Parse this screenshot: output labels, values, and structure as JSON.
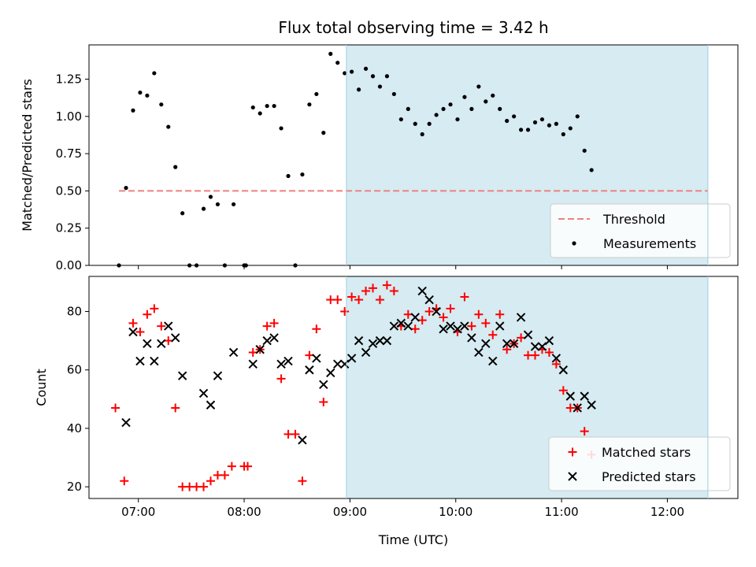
{
  "chart_data": {
    "type": "scatter",
    "title": "Flux total observing time = 3.42 h",
    "xlabel": "Time (UTC)",
    "x_ticks": [
      "07:00",
      "08:00",
      "09:00",
      "10:00",
      "11:00",
      "12:00"
    ],
    "xlim": [
      "06:32",
      "12:40"
    ],
    "shaded_interval": {
      "start": "08:58",
      "end": "12:23",
      "color": "#add8e6"
    },
    "panels": [
      {
        "ylabel": "Matched/Predicted stars",
        "ylim": [
          0,
          1.48
        ],
        "y_ticks": [
          "0.00",
          "0.25",
          "0.50",
          "0.75",
          "1.00",
          "1.25"
        ],
        "threshold": {
          "name": "Threshold",
          "value": 0.5,
          "x_start": "06:49",
          "x_end": "12:23",
          "color": "#f08080"
        },
        "series": [
          {
            "name": "Measurements",
            "marker": "dot",
            "color": "#000000",
            "points": [
              [
                "06:49",
                0.0
              ],
              [
                "06:53",
                0.52
              ],
              [
                "06:57",
                1.04
              ],
              [
                "07:01",
                1.16
              ],
              [
                "07:05",
                1.14
              ],
              [
                "07:09",
                1.29
              ],
              [
                "07:13",
                1.08
              ],
              [
                "07:17",
                0.93
              ],
              [
                "07:21",
                0.66
              ],
              [
                "07:25",
                0.35
              ],
              [
                "07:29",
                0.0
              ],
              [
                "07:33",
                0.0
              ],
              [
                "07:37",
                0.38
              ],
              [
                "07:41",
                0.46
              ],
              [
                "07:45",
                0.41
              ],
              [
                "07:49",
                0.0
              ],
              [
                "07:54",
                0.41
              ],
              [
                "08:00",
                0.0
              ],
              [
                "08:01",
                0.0
              ],
              [
                "08:05",
                1.06
              ],
              [
                "08:09",
                1.02
              ],
              [
                "08:13",
                1.07
              ],
              [
                "08:17",
                1.07
              ],
              [
                "08:21",
                0.92
              ],
              [
                "08:25",
                0.6
              ],
              [
                "08:29",
                0.0
              ],
              [
                "08:33",
                0.61
              ],
              [
                "08:37",
                1.08
              ],
              [
                "08:41",
                1.15
              ],
              [
                "08:45",
                0.89
              ],
              [
                "08:49",
                1.42
              ],
              [
                "08:53",
                1.36
              ],
              [
                "08:57",
                1.29
              ],
              [
                "09:01",
                1.3
              ],
              [
                "09:05",
                1.18
              ],
              [
                "09:09",
                1.32
              ],
              [
                "09:13",
                1.27
              ],
              [
                "09:17",
                1.2
              ],
              [
                "09:21",
                1.27
              ],
              [
                "09:25",
                1.15
              ],
              [
                "09:29",
                0.98
              ],
              [
                "09:33",
                1.05
              ],
              [
                "09:37",
                0.95
              ],
              [
                "09:41",
                0.88
              ],
              [
                "09:45",
                0.95
              ],
              [
                "09:49",
                1.01
              ],
              [
                "09:53",
                1.05
              ],
              [
                "09:57",
                1.08
              ],
              [
                "10:01",
                0.98
              ],
              [
                "10:05",
                1.13
              ],
              [
                "10:09",
                1.05
              ],
              [
                "10:13",
                1.2
              ],
              [
                "10:17",
                1.1
              ],
              [
                "10:21",
                1.14
              ],
              [
                "10:25",
                1.05
              ],
              [
                "10:29",
                0.97
              ],
              [
                "10:33",
                1.0
              ],
              [
                "10:37",
                0.91
              ],
              [
                "10:41",
                0.91
              ],
              [
                "10:45",
                0.96
              ],
              [
                "10:49",
                0.98
              ],
              [
                "10:53",
                0.94
              ],
              [
                "10:57",
                0.95
              ],
              [
                "11:01",
                0.88
              ],
              [
                "11:05",
                0.92
              ],
              [
                "11:09",
                1.0
              ],
              [
                "11:13",
                0.77
              ],
              [
                "11:17",
                0.64
              ]
            ]
          }
        ],
        "legend": {
          "position": "lower right",
          "entries": [
            "Threshold",
            "Measurements"
          ]
        }
      },
      {
        "ylabel": "Count",
        "ylim": [
          16,
          92
        ],
        "y_ticks": [
          "20",
          "40",
          "60",
          "80"
        ],
        "series": [
          {
            "name": "Matched stars",
            "marker": "plus",
            "color": "#ff0000",
            "points": [
              [
                "06:47",
                47
              ],
              [
                "06:52",
                22
              ],
              [
                "06:57",
                76
              ],
              [
                "07:01",
                73
              ],
              [
                "07:05",
                79
              ],
              [
                "07:09",
                81
              ],
              [
                "07:13",
                75
              ],
              [
                "07:17",
                70
              ],
              [
                "07:21",
                47
              ],
              [
                "07:25",
                20
              ],
              [
                "07:29",
                20
              ],
              [
                "07:33",
                20
              ],
              [
                "07:37",
                20
              ],
              [
                "07:41",
                22
              ],
              [
                "07:45",
                24
              ],
              [
                "07:49",
                24
              ],
              [
                "07:53",
                27
              ],
              [
                "08:00",
                27
              ],
              [
                "08:02",
                27
              ],
              [
                "08:05",
                66
              ],
              [
                "08:09",
                67
              ],
              [
                "08:13",
                75
              ],
              [
                "08:17",
                76
              ],
              [
                "08:21",
                57
              ],
              [
                "08:25",
                38
              ],
              [
                "08:29",
                38
              ],
              [
                "08:33",
                22
              ],
              [
                "08:37",
                65
              ],
              [
                "08:41",
                74
              ],
              [
                "08:45",
                49
              ],
              [
                "08:49",
                84
              ],
              [
                "08:53",
                84
              ],
              [
                "08:57",
                80
              ],
              [
                "09:01",
                85
              ],
              [
                "09:05",
                84
              ],
              [
                "09:09",
                87
              ],
              [
                "09:13",
                88
              ],
              [
                "09:17",
                84
              ],
              [
                "09:21",
                89
              ],
              [
                "09:25",
                87
              ],
              [
                "09:29",
                75
              ],
              [
                "09:33",
                79
              ],
              [
                "09:37",
                74
              ],
              [
                "09:41",
                77
              ],
              [
                "09:45",
                80
              ],
              [
                "09:49",
                81
              ],
              [
                "09:53",
                78
              ],
              [
                "09:57",
                81
              ],
              [
                "10:01",
                73
              ],
              [
                "10:05",
                85
              ],
              [
                "10:09",
                75
              ],
              [
                "10:13",
                79
              ],
              [
                "10:17",
                76
              ],
              [
                "10:21",
                72
              ],
              [
                "10:25",
                79
              ],
              [
                "10:29",
                67
              ],
              [
                "10:33",
                69
              ],
              [
                "10:37",
                71
              ],
              [
                "10:41",
                65
              ],
              [
                "10:45",
                65
              ],
              [
                "10:49",
                67
              ],
              [
                "10:53",
                66
              ],
              [
                "10:57",
                62
              ],
              [
                "11:01",
                53
              ],
              [
                "11:05",
                47
              ],
              [
                "11:09",
                47
              ],
              [
                "11:13",
                39
              ],
              [
                "11:17",
                31
              ]
            ]
          },
          {
            "name": "Predicted stars",
            "marker": "x",
            "color": "#000000",
            "points": [
              [
                "06:53",
                42
              ],
              [
                "06:57",
                73
              ],
              [
                "07:01",
                63
              ],
              [
                "07:05",
                69
              ],
              [
                "07:09",
                63
              ],
              [
                "07:13",
                69
              ],
              [
                "07:17",
                75
              ],
              [
                "07:21",
                71
              ],
              [
                "07:25",
                58
              ],
              [
                "07:37",
                52
              ],
              [
                "07:41",
                48
              ],
              [
                "07:45",
                58
              ],
              [
                "07:54",
                66
              ],
              [
                "08:05",
                62
              ],
              [
                "08:09",
                67
              ],
              [
                "08:13",
                70
              ],
              [
                "08:17",
                71
              ],
              [
                "08:21",
                62
              ],
              [
                "08:25",
                63
              ],
              [
                "08:33",
                36
              ],
              [
                "08:37",
                60
              ],
              [
                "08:41",
                64
              ],
              [
                "08:45",
                55
              ],
              [
                "08:49",
                59
              ],
              [
                "08:53",
                62
              ],
              [
                "08:57",
                62
              ],
              [
                "09:01",
                64
              ],
              [
                "09:05",
                70
              ],
              [
                "09:09",
                66
              ],
              [
                "09:13",
                69
              ],
              [
                "09:17",
                70
              ],
              [
                "09:21",
                70
              ],
              [
                "09:25",
                75
              ],
              [
                "09:29",
                76
              ],
              [
                "09:33",
                75
              ],
              [
                "09:37",
                78
              ],
              [
                "09:41",
                87
              ],
              [
                "09:45",
                84
              ],
              [
                "09:49",
                80
              ],
              [
                "09:53",
                74
              ],
              [
                "09:57",
                75
              ],
              [
                "10:01",
                74
              ],
              [
                "10:05",
                75
              ],
              [
                "10:09",
                71
              ],
              [
                "10:13",
                66
              ],
              [
                "10:17",
                69
              ],
              [
                "10:21",
                63
              ],
              [
                "10:25",
                75
              ],
              [
                "10:29",
                69
              ],
              [
                "10:33",
                69
              ],
              [
                "10:37",
                78
              ],
              [
                "10:41",
                72
              ],
              [
                "10:45",
                68
              ],
              [
                "10:49",
                68
              ],
              [
                "10:53",
                70
              ],
              [
                "10:57",
                64
              ],
              [
                "11:01",
                60
              ],
              [
                "11:05",
                51
              ],
              [
                "11:09",
                47
              ],
              [
                "11:13",
                51
              ],
              [
                "11:17",
                48
              ]
            ]
          }
        ],
        "legend": {
          "position": "lower right",
          "entries": [
            "Matched stars",
            "Predicted stars"
          ]
        }
      }
    ]
  }
}
